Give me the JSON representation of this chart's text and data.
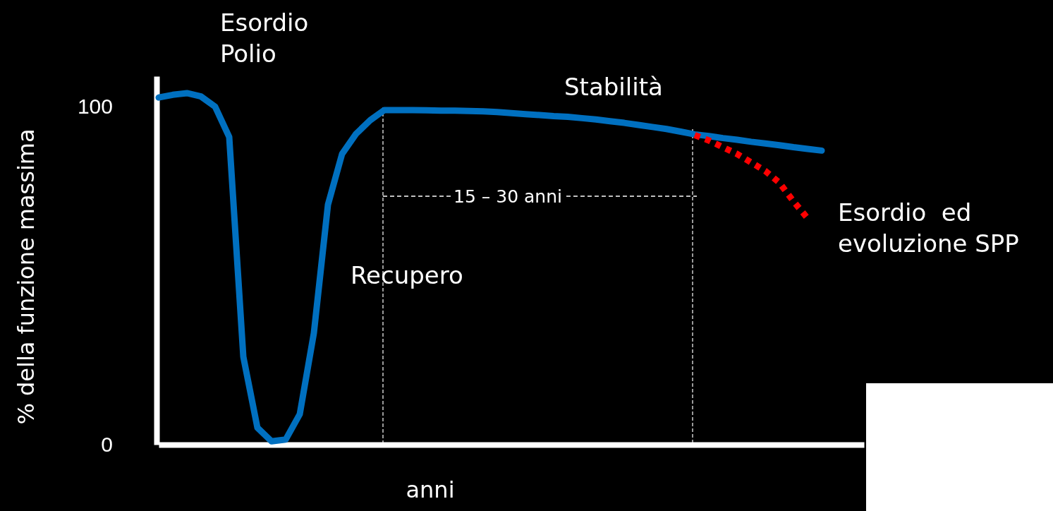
{
  "chart_data": {
    "type": "line",
    "xlabel": "anni",
    "ylabel": "% della funzione massima",
    "categories": [
      null,
      null,
      null,
      null,
      null,
      null,
      null,
      null,
      null,
      null,
      null,
      null,
      null,
      null,
      null,
      null,
      null,
      null,
      null,
      null,
      null,
      null,
      null,
      null,
      null,
      null,
      null,
      null,
      null,
      null,
      null,
      null,
      null,
      null,
      null,
      null,
      null,
      null,
      null,
      null,
      null,
      null,
      null,
      null,
      null,
      null,
      null,
      null,
      null,
      null,
      null
    ],
    "ylim": [
      0,
      109
    ],
    "yticks": [
      0,
      100
    ],
    "tick_labels": "y",
    "marker": "none",
    "series": [
      {
        "color": "#0070c0",
        "line_style": "solid",
        "values": [
          102.7,
          103.5,
          104,
          103,
          100,
          91,
          26,
          5,
          1,
          1.5,
          9,
          33,
          71,
          86,
          92,
          96,
          99,
          99,
          99,
          98.9,
          98.8,
          98.8,
          98.7,
          98.6,
          98.4,
          98.1,
          97.8,
          97.5,
          97.2,
          97,
          96.6,
          96.2,
          95.7,
          95.2,
          94.6,
          94,
          93.4,
          92.6,
          91.8,
          91.3,
          90.7,
          90.2,
          89.6,
          89.1,
          88.6,
          88,
          87.5,
          87,
          null,
          null,
          null
        ]
      },
      {
        "color": "#ff0000",
        "line_style": "dotted",
        "values": [
          null,
          null,
          null,
          null,
          null,
          null,
          null,
          null,
          null,
          null,
          null,
          null,
          null,
          null,
          null,
          null,
          null,
          null,
          null,
          null,
          null,
          null,
          null,
          null,
          null,
          null,
          null,
          null,
          null,
          null,
          null,
          null,
          null,
          null,
          null,
          null,
          null,
          null,
          91.6,
          90,
          88,
          86,
          83.5,
          81,
          77.5,
          72,
          67,
          null,
          null,
          null,
          null
        ]
      }
    ],
    "annotations": [
      "Esordio Polio",
      "Recupero",
      "Stabilità",
      "15 – 30 anni",
      "Esordio  ed evoluzione SPP"
    ]
  }
}
